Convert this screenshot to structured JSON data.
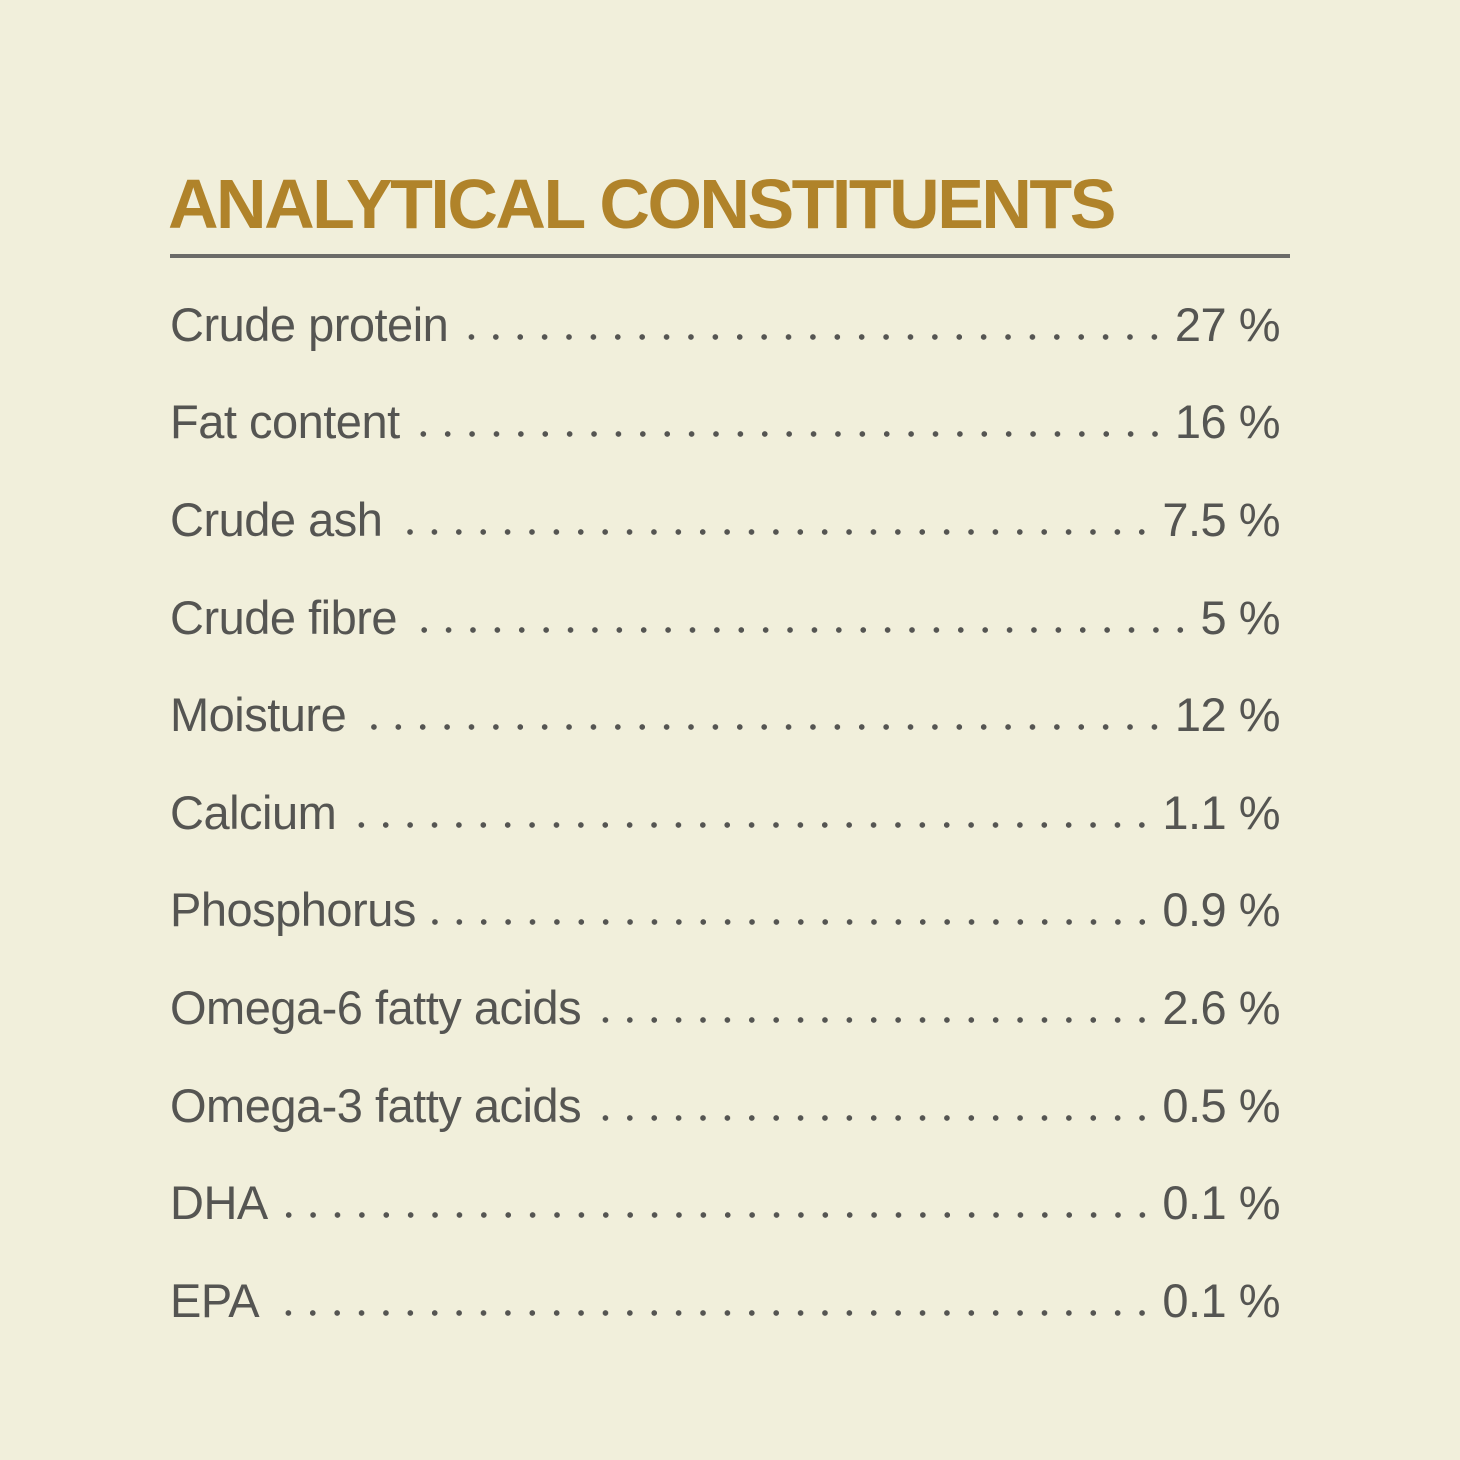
{
  "title": "ANALYTICAL CONSTITUENTS",
  "colors": {
    "background": "#f1efdb",
    "title": "#b0832a",
    "text": "#555552",
    "rule": "#6b6b68"
  },
  "rows": [
    {
      "label": "Crude protein",
      "value": "27 %"
    },
    {
      "label": "Fat content",
      "value": "16 %"
    },
    {
      "label": "Crude ash",
      "value": "7.5 %"
    },
    {
      "label": "Crude fibre",
      "value": "5 %"
    },
    {
      "label": "Moisture",
      "value": "12 %"
    },
    {
      "label": "Calcium",
      "value": "1.1 %"
    },
    {
      "label": "Phosphorus",
      "value": "0.9 %"
    },
    {
      "label": "Omega-6 fatty acids",
      "value": "2.6 %"
    },
    {
      "label": "Omega-3 fatty acids",
      "value": "0.5 %"
    },
    {
      "label": "DHA",
      "value": "0.1 %"
    },
    {
      "label": "EPA",
      "value": "0.1 %"
    }
  ]
}
